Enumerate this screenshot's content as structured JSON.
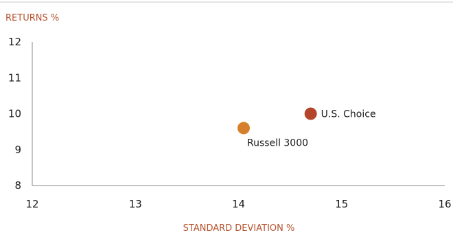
{
  "chart_data": {
    "type": "scatter",
    "ylabel": "RETURNS %",
    "xlabel": "STANDARD DEVIATION %",
    "xlim": [
      12,
      16
    ],
    "ylim": [
      8,
      12
    ],
    "x_ticks": [
      "12",
      "13",
      "14",
      "15",
      "16"
    ],
    "y_ticks": [
      "8",
      "9",
      "10",
      "11",
      "12"
    ],
    "grid": false,
    "points": [
      {
        "label": "U.S. Choice",
        "x": 14.7,
        "y": 10.0,
        "color": "#b5452a"
      },
      {
        "label": "Russell 3000",
        "x": 14.05,
        "y": 9.6,
        "color": "#d67f2c"
      }
    ]
  },
  "colors": {
    "axis_title": "#b5532e",
    "axis_line": "#8a8a8a",
    "top_rule": "#c9c9c9"
  }
}
